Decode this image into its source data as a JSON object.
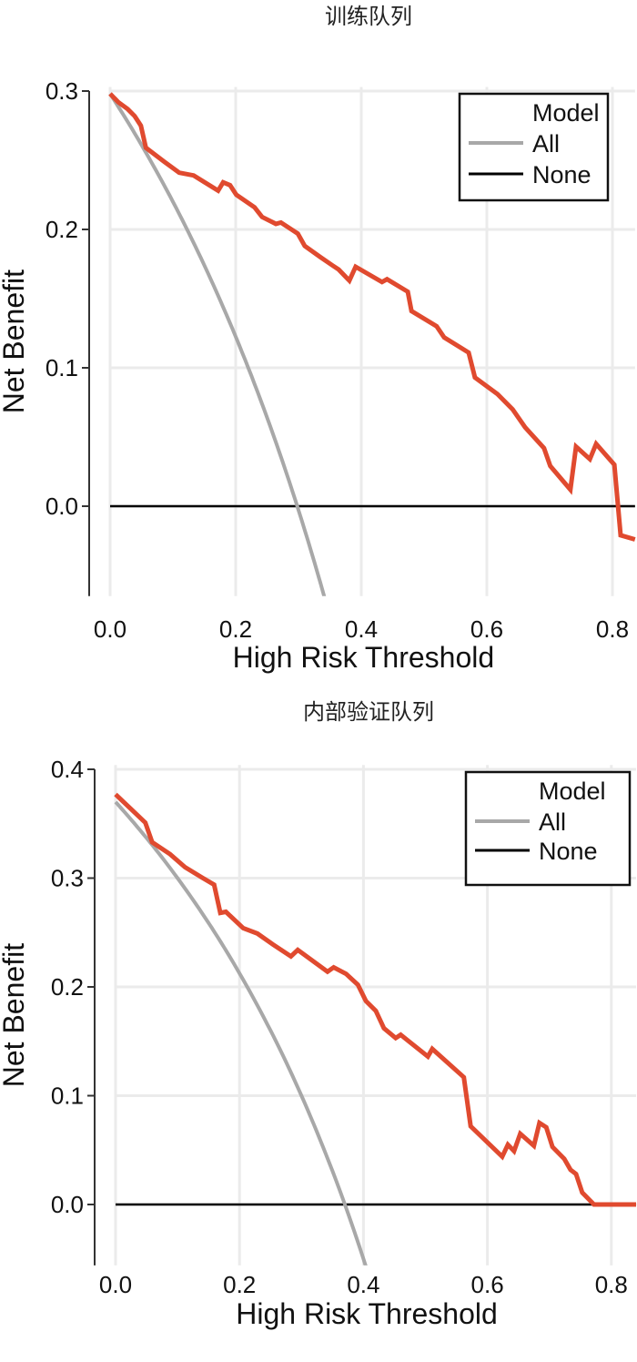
{
  "chart_data": [
    {
      "type": "line",
      "title": "训练队列",
      "xlabel": "High Risk Threshold",
      "ylabel": "Net Benefit",
      "xlim": [
        0,
        0.836
      ],
      "ylim": [
        -0.065,
        0.303
      ],
      "xticks": [
        "0.0",
        "0.2",
        "0.4",
        "0.6",
        "0.8"
      ],
      "yticks": [
        "0.0",
        "0.1",
        "0.2",
        "0.3"
      ],
      "grid": true,
      "legend": {
        "position": "top-right",
        "entries": [
          "Model",
          "All",
          "None"
        ]
      },
      "colors": {
        "Model": "#e04a2f",
        "All": "#a8a8a8",
        "None": "#000000"
      },
      "prevalence": 0.298,
      "series": [
        {
          "name": "Model",
          "x": [
            0,
            0.013,
            0.028,
            0.039,
            0.049,
            0.057,
            0.086,
            0.11,
            0.133,
            0.172,
            0.18,
            0.191,
            0.201,
            0.23,
            0.242,
            0.264,
            0.272,
            0.299,
            0.31,
            0.335,
            0.354,
            0.364,
            0.381,
            0.391,
            0.433,
            0.441,
            0.474,
            0.48,
            0.52,
            0.532,
            0.571,
            0.581,
            0.617,
            0.641,
            0.661,
            0.691,
            0.701,
            0.733,
            0.742,
            0.764,
            0.774,
            0.803,
            0.813,
            0.836
          ],
          "y": [
            0.298,
            0.292,
            0.287,
            0.282,
            0.275,
            0.259,
            0.249,
            0.241,
            0.239,
            0.228,
            0.234,
            0.232,
            0.225,
            0.216,
            0.209,
            0.204,
            0.205,
            0.197,
            0.188,
            0.18,
            0.174,
            0.171,
            0.163,
            0.173,
            0.162,
            0.164,
            0.155,
            0.141,
            0.13,
            0.122,
            0.111,
            0.093,
            0.081,
            0.07,
            0.057,
            0.042,
            0.029,
            0.012,
            0.043,
            0.034,
            0.045,
            0.03,
            -0.021,
            -0.024
          ]
        },
        {
          "name": "All",
          "formula": "prevalence - (1 - prevalence) * x / (1 - x)"
        },
        {
          "name": "None",
          "x": [
            0,
            0.836
          ],
          "y": [
            0,
            0
          ]
        }
      ]
    },
    {
      "type": "line",
      "title": "内部验证队列",
      "xlabel": "High Risk Threshold",
      "ylabel": "Net Benefit",
      "xlim": [
        0,
        0.84
      ],
      "ylim": [
        -0.056,
        0.404
      ],
      "xticks": [
        "0.0",
        "0.2",
        "0.4",
        "0.6",
        "0.8"
      ],
      "yticks": [
        "0.0",
        "0.1",
        "0.2",
        "0.3",
        "0.4"
      ],
      "grid": true,
      "legend": {
        "position": "top-right",
        "entries": [
          "Model",
          "All",
          "None"
        ]
      },
      "colors": {
        "Model": "#e04a2f",
        "All": "#a8a8a8",
        "None": "#000000"
      },
      "prevalence": 0.37,
      "series": [
        {
          "name": "Model",
          "x": [
            0,
            0.048,
            0.059,
            0.088,
            0.112,
            0.141,
            0.159,
            0.169,
            0.178,
            0.206,
            0.229,
            0.254,
            0.283,
            0.294,
            0.342,
            0.352,
            0.372,
            0.391,
            0.404,
            0.42,
            0.433,
            0.452,
            0.46,
            0.504,
            0.511,
            0.562,
            0.573,
            0.624,
            0.633,
            0.643,
            0.653,
            0.675,
            0.684,
            0.695,
            0.705,
            0.724,
            0.734,
            0.743,
            0.753,
            0.772,
            0.84
          ],
          "y": [
            0.377,
            0.351,
            0.333,
            0.322,
            0.31,
            0.3,
            0.294,
            0.268,
            0.269,
            0.254,
            0.249,
            0.239,
            0.228,
            0.234,
            0.214,
            0.218,
            0.212,
            0.202,
            0.187,
            0.178,
            0.162,
            0.153,
            0.156,
            0.136,
            0.143,
            0.117,
            0.072,
            0.044,
            0.055,
            0.049,
            0.065,
            0.054,
            0.075,
            0.071,
            0.053,
            0.042,
            0.032,
            0.028,
            0.011,
            0,
            0
          ]
        },
        {
          "name": "All",
          "formula": "prevalence - (1 - prevalence) * x / (1 - x)"
        },
        {
          "name": "None",
          "x": [
            0,
            0.84
          ],
          "y": [
            0,
            0
          ]
        }
      ]
    }
  ]
}
